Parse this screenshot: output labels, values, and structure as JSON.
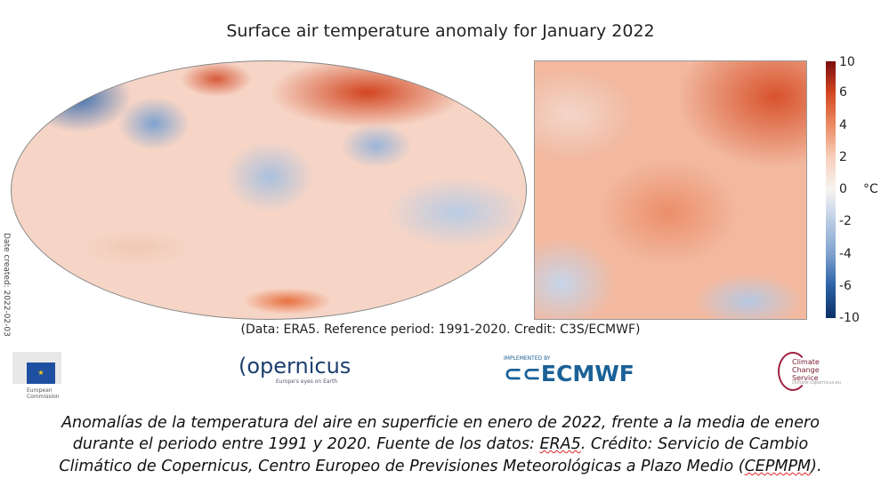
{
  "title": "Surface air temperature anomaly for January 2022",
  "date_created": "Date created: 2022-02-03",
  "colorbar": {
    "ticks": [
      "10",
      "6",
      "4",
      "2",
      "0",
      "-2",
      "-4",
      "-6",
      "-10"
    ],
    "unit": "°C",
    "colors": [
      "#7a0d0f",
      "#d2451f",
      "#f7f4f2",
      "#2d64a8",
      "#0b2f66"
    ]
  },
  "credit": "(Data: ERA5.  Reference period: 1991-2020.  Credit: C3S/ECMWF)",
  "logos": {
    "eu": "European Commission",
    "copernicus": "opernicus",
    "copernicus_sub": "Europe's eyes on Earth",
    "ecmwf_impl": "IMPLEMENTED BY",
    "ecmwf": "ECMWF",
    "c3s": "Climate Change Service",
    "c3s_sub": "climate.copernicus.eu"
  },
  "caption": {
    "line1": "Anomalías de la temperatura del aire en superficie en enero de 2022, frente a la media de enero",
    "line2a": "durante el periodo entre 1991 y 2020. Fuente de los datos: ",
    "line2b": "ERA5",
    "line2c": ". Crédito: Servicio de Cambio",
    "line3a": "Climático de Copernicus, Centro Europeo de Previsiones Meteorológicas a Plazo Medio (",
    "line3b": "CEPMPM",
    "line3c": ")."
  }
}
